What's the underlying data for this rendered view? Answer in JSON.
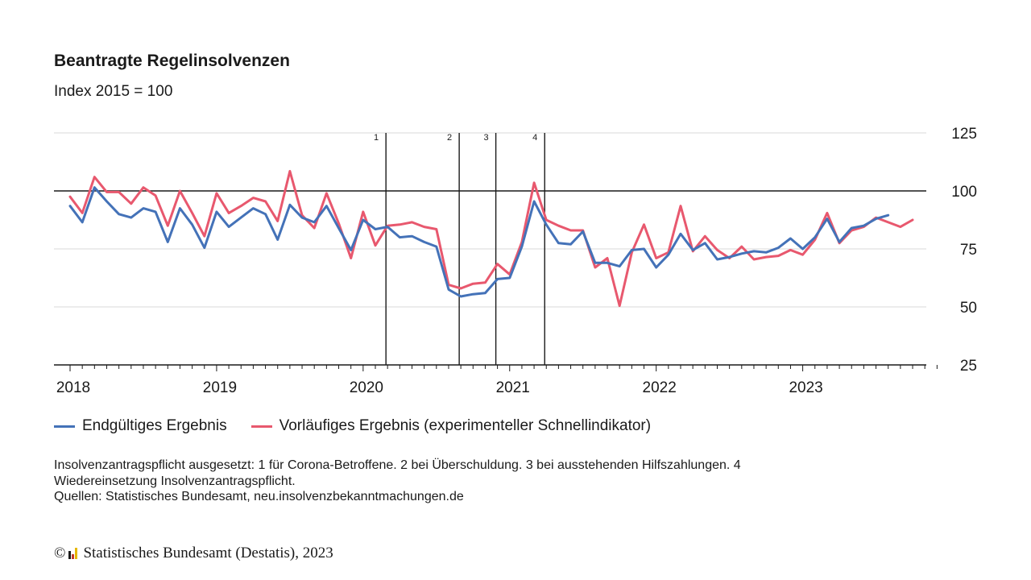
{
  "title": "Beantragte Regelinsolvenzen",
  "subtitle": "Index 2015 = 100",
  "colors": {
    "final": "#4472b8",
    "preliminary": "#e8586e",
    "axis": "#1a1a1a",
    "grid": "#d9d9d9"
  },
  "chart_data": {
    "type": "line",
    "title": "Beantragte Regelinsolvenzen",
    "subtitle": "Index 2015 = 100",
    "ylim": [
      25,
      125
    ],
    "yticks": [
      25,
      50,
      75,
      100,
      125
    ],
    "y_axis_side": "right",
    "grid": true,
    "reference_line": 100,
    "legend_position": "bottom-left",
    "x_start": "2018-01",
    "x_end": "2023-12",
    "x_ticks": [
      {
        "label": "2018",
        "month": "2018-01"
      },
      {
        "label": "2019",
        "month": "2019-01"
      },
      {
        "label": "2020",
        "month": "2020-01"
      },
      {
        "label": "2021",
        "month": "2021-01"
      },
      {
        "label": "2022",
        "month": "2022-01"
      },
      {
        "label": "2023",
        "month": "2023-01"
      }
    ],
    "annotations": [
      {
        "label": "1",
        "month": "2020-03"
      },
      {
        "label": "2",
        "month": "2020-09"
      },
      {
        "label": "3",
        "month": "2020-12"
      },
      {
        "label": "4",
        "month": "2021-04"
      }
    ],
    "series": [
      {
        "name": "Endgültiges Ergebnis",
        "key": "final",
        "start": "2018-01",
        "values": [
          93.5,
          86.5,
          101.5,
          95.5,
          90,
          88.5,
          92.5,
          91,
          78,
          92.5,
          85.5,
          75.5,
          91,
          84.5,
          88.5,
          92.5,
          90,
          79,
          94,
          88.5,
          86.5,
          93.5,
          84,
          74.5,
          87.5,
          83.5,
          84.5,
          80,
          80.5,
          78,
          76,
          57.5,
          54.5,
          55.5,
          56,
          62,
          62.5,
          76,
          95.5,
          85.5,
          77.5,
          77,
          82.5,
          69,
          69,
          67.5,
          74.5,
          75,
          67,
          72.5,
          81.5,
          74.5,
          77.5,
          70.5,
          71.5,
          73,
          74,
          73.5,
          75.5,
          79.5,
          75,
          80,
          88,
          78,
          84,
          85,
          88,
          89.5
        ]
      },
      {
        "name": "Vorläufiges Ergebnis (experimenteller Schnellindikator)",
        "key": "preliminary",
        "start": "2018-01",
        "values": [
          97.5,
          90.5,
          106,
          99.5,
          99.5,
          94.5,
          101.5,
          98,
          85,
          100,
          90.5,
          80.5,
          99,
          90.5,
          93.5,
          97,
          95.5,
          87,
          108.5,
          89.5,
          84,
          99,
          86,
          71,
          91,
          76.5,
          85,
          85.5,
          86.5,
          84.5,
          83.5,
          59.5,
          58,
          60,
          60.5,
          68.5,
          64,
          78,
          103.5,
          87.5,
          85,
          83,
          83,
          67,
          71,
          50.5,
          73.5,
          85.5,
          71,
          73.5,
          93.5,
          74,
          80.5,
          74.5,
          71,
          76,
          70.5,
          71.5,
          72,
          74.5,
          72.5,
          79,
          90.5,
          77.5,
          83,
          84.5,
          88.5,
          86.5,
          84.5,
          87.5
        ]
      }
    ]
  },
  "legend": [
    {
      "label": "Endgültiges Ergebnis",
      "color_key": "final"
    },
    {
      "label": "Vorläufiges Ergebnis (experimenteller Schnellindikator)",
      "color_key": "preliminary"
    }
  ],
  "footnote": {
    "line1": "Insolvenzantragspflicht ausgesetzt: 1 für Corona-Betroffene. 2 bei Überschuldung. 3 bei ausstehenden Hilfszahlungen. 4",
    "line2": "Wiedereinsetzung Insolvenzantragspflicht.",
    "line3": "Quellen: Statistisches Bundesamt, neu.insolvenzbekanntmachungen.de"
  },
  "copyright": {
    "symbol": "©",
    "text": "Statistisches Bundesamt (Destatis), 2023",
    "logo": "destatis-logo-icon"
  }
}
